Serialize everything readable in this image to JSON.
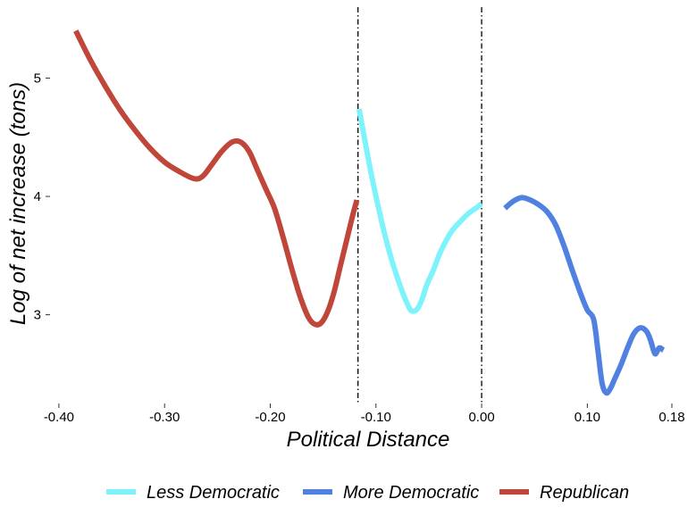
{
  "chart_data": {
    "type": "line",
    "xlabel": "Political Distance",
    "ylabel": "Log of net increase (tons)",
    "xlim": [
      -0.405,
      0.18
    ],
    "ylim": [
      2.25,
      5.6
    ],
    "x_ticks": [
      {
        "value": -0.4,
        "label": "-0.40"
      },
      {
        "value": -0.3,
        "label": "-0.30"
      },
      {
        "value": -0.2,
        "label": "-0.20"
      },
      {
        "value": -0.1,
        "label": "-0.10"
      },
      {
        "value": 0.0,
        "label": "0.00"
      },
      {
        "value": 0.1,
        "label": "0.10"
      },
      {
        "value": 0.18,
        "label": "0.18"
      }
    ],
    "y_ticks": [
      {
        "value": 3,
        "label": "3"
      },
      {
        "value": 4,
        "label": "4"
      },
      {
        "value": 5,
        "label": "5"
      }
    ],
    "vlines": [
      -0.117,
      0.0
    ],
    "grid": false,
    "legend_position": "bottom",
    "series": [
      {
        "name": "Republican",
        "color": "#c0463a",
        "x": [
          -0.384,
          -0.37,
          -0.356,
          -0.342,
          -0.328,
          -0.314,
          -0.3,
          -0.286,
          -0.272,
          -0.264,
          -0.256,
          -0.246,
          -0.236,
          -0.228,
          -0.22,
          -0.212,
          -0.204,
          -0.196,
          -0.188,
          -0.18,
          -0.172,
          -0.164,
          -0.158,
          -0.152,
          -0.146,
          -0.14,
          -0.134,
          -0.128,
          -0.122,
          -0.118
        ],
        "y": [
          5.4,
          5.15,
          4.93,
          4.73,
          4.56,
          4.41,
          4.29,
          4.21,
          4.15,
          4.17,
          4.26,
          4.38,
          4.46,
          4.46,
          4.38,
          4.22,
          4.06,
          3.9,
          3.66,
          3.4,
          3.16,
          2.98,
          2.92,
          2.93,
          3.02,
          3.18,
          3.4,
          3.62,
          3.84,
          3.97
        ]
      },
      {
        "name": "Less Democratic",
        "color": "#7ff3fb",
        "x": [
          -0.116,
          -0.11,
          -0.104,
          -0.098,
          -0.092,
          -0.086,
          -0.08,
          -0.074,
          -0.068,
          -0.064,
          -0.06,
          -0.056,
          -0.052,
          -0.046,
          -0.04,
          -0.034,
          -0.028,
          -0.02,
          -0.012,
          -0.004,
          0.0
        ],
        "y": [
          4.74,
          4.45,
          4.17,
          3.92,
          3.69,
          3.49,
          3.32,
          3.17,
          3.05,
          3.03,
          3.06,
          3.14,
          3.25,
          3.37,
          3.51,
          3.62,
          3.71,
          3.79,
          3.86,
          3.91,
          3.94
        ]
      },
      {
        "name": "More Democratic",
        "color": "#5080e0",
        "x": [
          0.022,
          0.03,
          0.038,
          0.046,
          0.054,
          0.062,
          0.07,
          0.078,
          0.086,
          0.094,
          0.1,
          0.106,
          0.11,
          0.114,
          0.118,
          0.122,
          0.126,
          0.132,
          0.138,
          0.144,
          0.15,
          0.156,
          0.16,
          0.164,
          0.168,
          0.172
        ],
        "y": [
          3.9,
          3.96,
          3.99,
          3.97,
          3.93,
          3.87,
          3.76,
          3.58,
          3.37,
          3.17,
          3.04,
          2.96,
          2.7,
          2.42,
          2.34,
          2.38,
          2.46,
          2.58,
          2.72,
          2.84,
          2.89,
          2.86,
          2.78,
          2.67,
          2.72,
          2.7
        ]
      }
    ],
    "legend": [
      {
        "label": "Less Democratic",
        "color": "#7ff3fb"
      },
      {
        "label": "More Democratic",
        "color": "#5080e0"
      },
      {
        "label": "Republican",
        "color": "#c0463a"
      }
    ]
  }
}
